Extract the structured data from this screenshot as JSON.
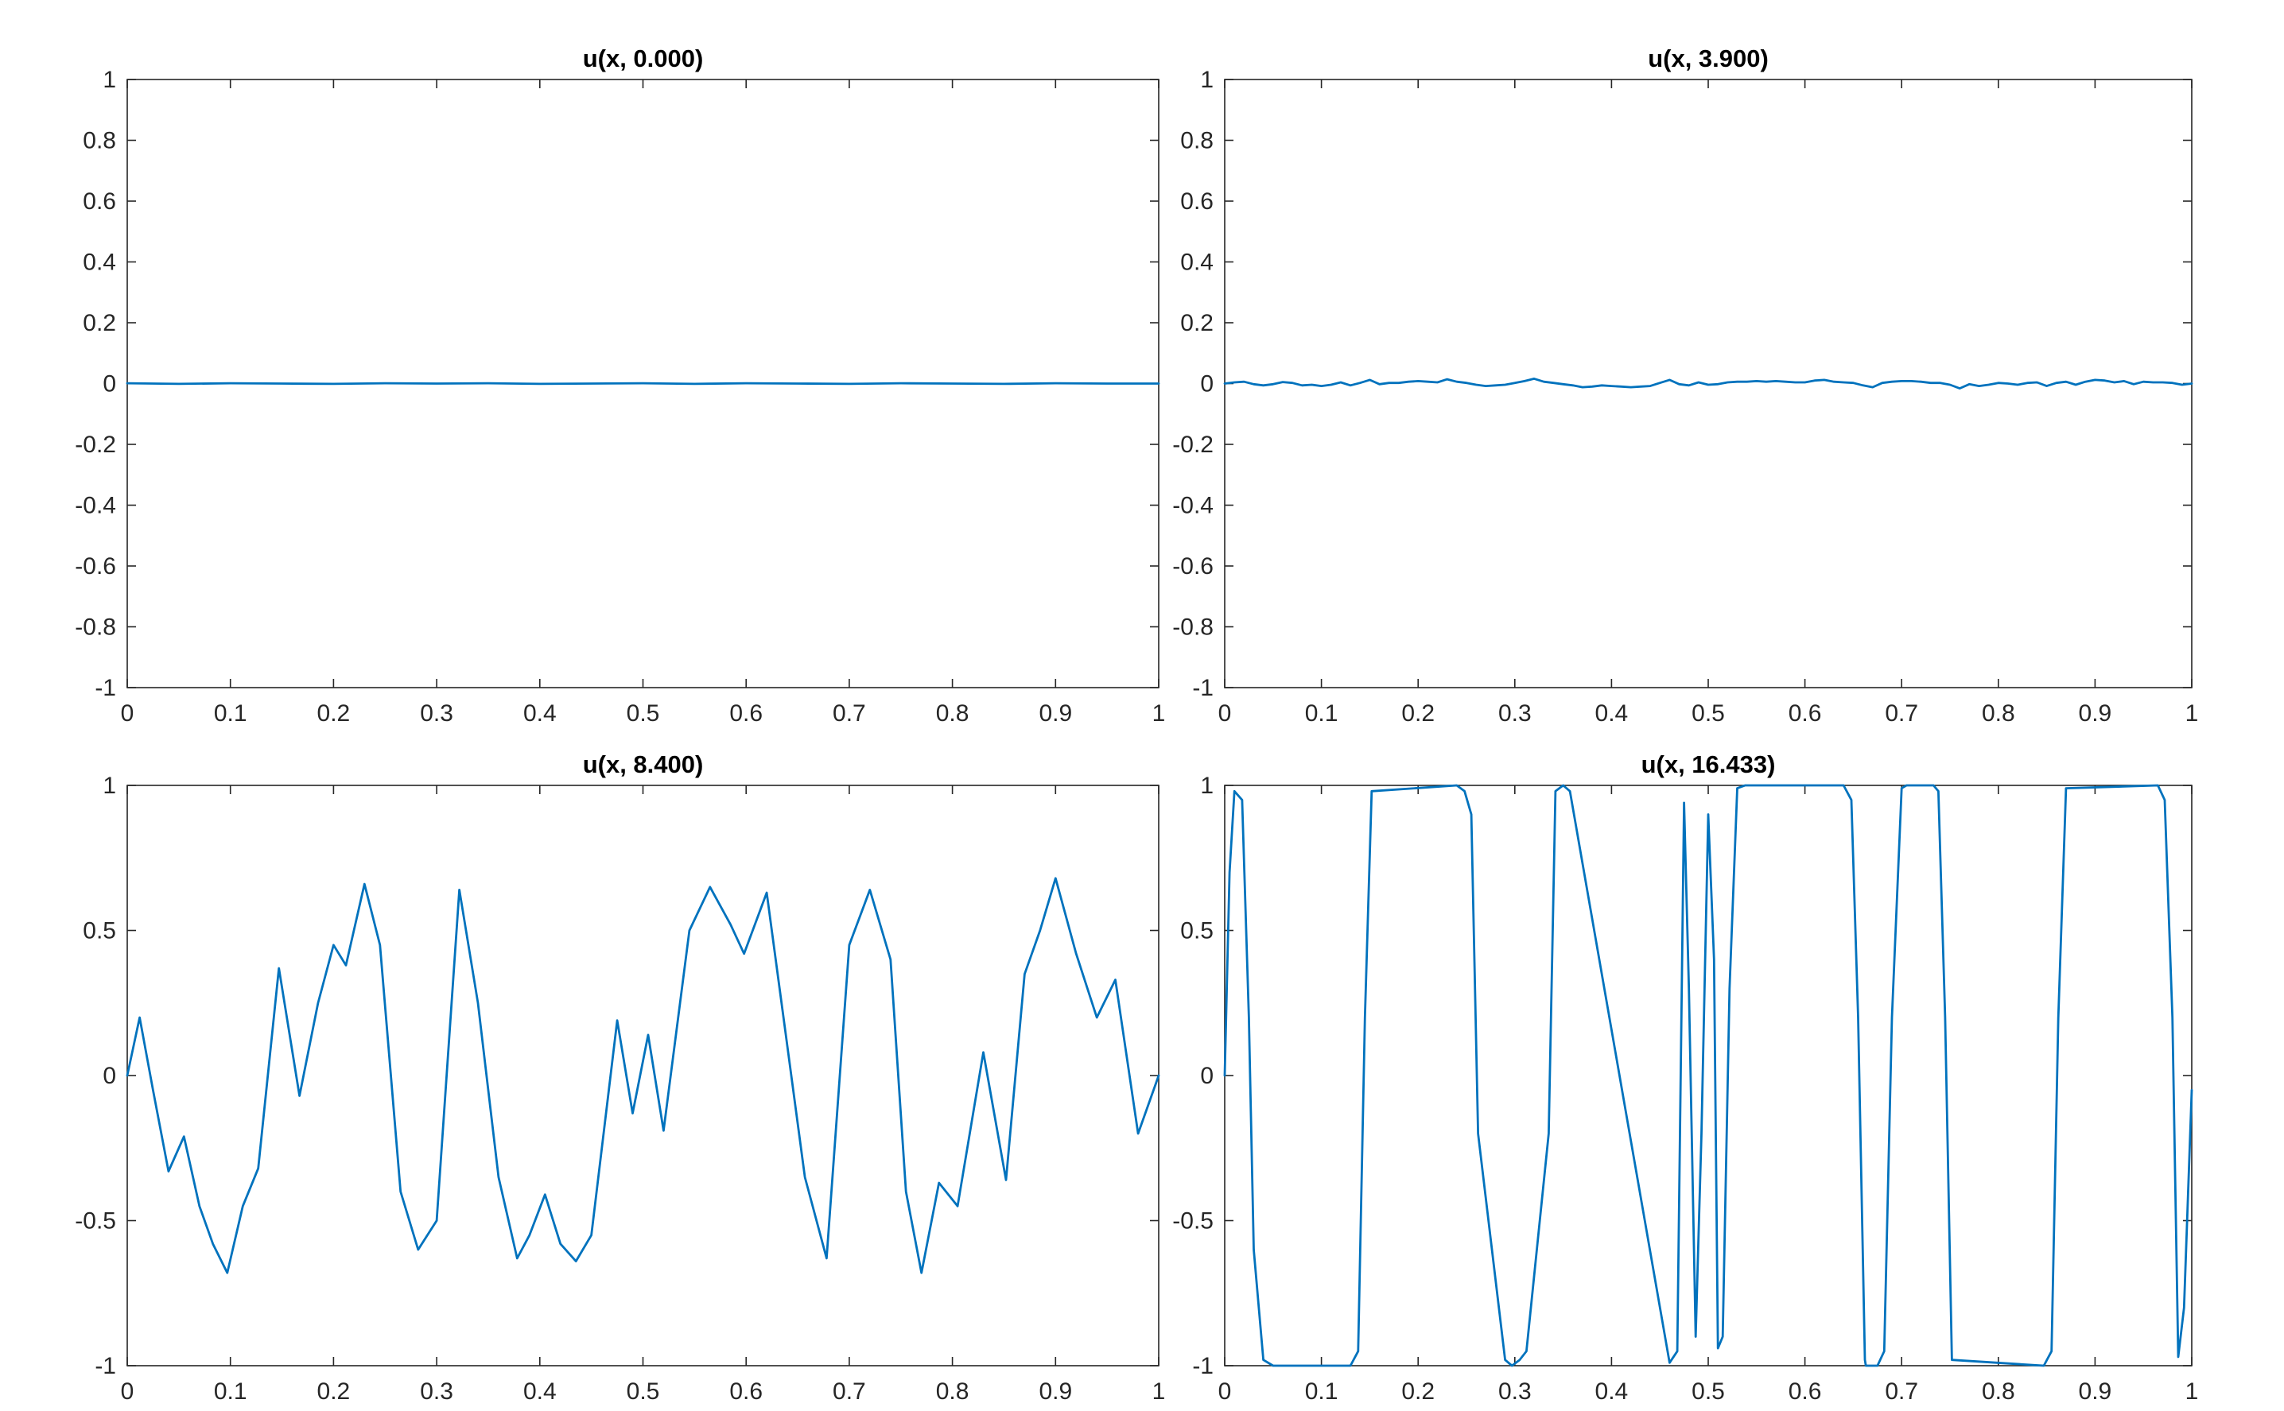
{
  "chart_data": [
    {
      "type": "line",
      "title": "u(x, 0.000)",
      "xlabel": "",
      "ylabel": "",
      "xlim": [
        0,
        1
      ],
      "ylim": [
        -1,
        1
      ],
      "xticks": [
        "0",
        "0.1",
        "0.2",
        "0.3",
        "0.4",
        "0.5",
        "0.6",
        "0.7",
        "0.8",
        "0.9",
        "1"
      ],
      "yticks": [
        "-1",
        "-0.8",
        "-0.6",
        "-0.4",
        "-0.2",
        "0",
        "0.2",
        "0.4",
        "0.6",
        "0.8",
        "1"
      ],
      "grid": false,
      "color": "#0072BD",
      "series": [
        {
          "x": [
            0,
            0.05,
            0.1,
            0.15,
            0.2,
            0.25,
            0.3,
            0.35,
            0.4,
            0.45,
            0.5,
            0.55,
            0.6,
            0.65,
            0.7,
            0.75,
            0.8,
            0.85,
            0.9,
            0.95,
            1
          ],
          "y": [
            0.001,
            -0.001,
            0.001,
            0,
            -0.001,
            0.001,
            0,
            0.001,
            -0.001,
            0,
            0.001,
            -0.001,
            0.001,
            0,
            -0.001,
            0.001,
            0,
            -0.001,
            0.001,
            0,
            0
          ]
        }
      ]
    },
    {
      "type": "line",
      "title": "u(x, 3.900)",
      "xlabel": "",
      "ylabel": "",
      "xlim": [
        0,
        1
      ],
      "ylim": [
        -1,
        1
      ],
      "xticks": [
        "0",
        "0.1",
        "0.2",
        "0.3",
        "0.4",
        "0.5",
        "0.6",
        "0.7",
        "0.8",
        "0.9",
        "1"
      ],
      "yticks": [
        "-1",
        "-0.8",
        "-0.6",
        "-0.4",
        "-0.2",
        "0",
        "0.2",
        "0.4",
        "0.6",
        "0.8",
        "1"
      ],
      "grid": false,
      "color": "#0072BD",
      "series": [
        {
          "x": [
            0,
            0.01,
            0.02,
            0.03,
            0.04,
            0.05,
            0.06,
            0.07,
            0.08,
            0.09,
            0.1,
            0.11,
            0.12,
            0.13,
            0.14,
            0.15,
            0.16,
            0.17,
            0.18,
            0.19,
            0.2,
            0.21,
            0.22,
            0.23,
            0.24,
            0.25,
            0.26,
            0.27,
            0.28,
            0.29,
            0.3,
            0.31,
            0.32,
            0.33,
            0.34,
            0.35,
            0.36,
            0.37,
            0.38,
            0.39,
            0.4,
            0.41,
            0.42,
            0.43,
            0.44,
            0.45,
            0.46,
            0.47,
            0.48,
            0.49,
            0.5,
            0.51,
            0.52,
            0.53,
            0.54,
            0.55,
            0.56,
            0.57,
            0.58,
            0.59,
            0.6,
            0.61,
            0.62,
            0.63,
            0.64,
            0.65,
            0.66,
            0.67,
            0.68,
            0.69,
            0.7,
            0.71,
            0.72,
            0.73,
            0.74,
            0.75,
            0.76,
            0.77,
            0.78,
            0.79,
            0.8,
            0.81,
            0.82,
            0.83,
            0.84,
            0.85,
            0.86,
            0.87,
            0.88,
            0.89,
            0.9,
            0.91,
            0.92,
            0.93,
            0.94,
            0.95,
            0.96,
            0.97,
            0.98,
            0.99,
            1
          ],
          "y": [
            0,
            0.004,
            0.006,
            -0.002,
            -0.006,
            -0.002,
            0.005,
            0.002,
            -0.006,
            -0.004,
            -0.008,
            -0.004,
            0.004,
            -0.006,
            0.002,
            0.012,
            -0.002,
            0.002,
            0.002,
            0.006,
            0.008,
            0.006,
            0.004,
            0.014,
            0.006,
            0.002,
            -0.004,
            -0.008,
            -0.006,
            -0.004,
            0.002,
            0.008,
            0.016,
            0.006,
            0.002,
            -0.002,
            -0.006,
            -0.012,
            -0.01,
            -0.006,
            -0.008,
            -0.01,
            -0.012,
            -0.01,
            -0.008,
            0.002,
            0.012,
            -0.002,
            -0.006,
            0.004,
            -0.004,
            -0.002,
            0.004,
            0.006,
            0.006,
            0.008,
            0.006,
            0.008,
            0.006,
            0.004,
            0.004,
            0.01,
            0.012,
            0.006,
            0.004,
            0.002,
            -0.006,
            -0.012,
            0.002,
            0.006,
            0.008,
            0.008,
            0.006,
            0.002,
            0.002,
            -0.004,
            -0.016,
            -0.002,
            -0.008,
            -0.004,
            0.002,
            0,
            -0.004,
            0.002,
            0.004,
            -0.008,
            0.002,
            0.006,
            -0.004,
            0.006,
            0.012,
            0.01,
            0.004,
            0.008,
            -0.002,
            0.006,
            0.004,
            0.004,
            0.002,
            -0.004,
            0
          ]
        }
      ]
    },
    {
      "type": "line",
      "title": "u(x, 8.400)",
      "xlabel": "",
      "ylabel": "",
      "xlim": [
        0,
        1
      ],
      "ylim": [
        -1,
        1
      ],
      "xticks": [
        "0",
        "0.1",
        "0.2",
        "0.3",
        "0.4",
        "0.5",
        "0.6",
        "0.7",
        "0.8",
        "0.9",
        "1"
      ],
      "yticks": [
        "-1",
        "-0.5",
        "0",
        "0.5",
        "1"
      ],
      "grid": false,
      "color": "#0072BD",
      "series": [
        {
          "x": [
            0,
            0.012,
            0.025,
            0.04,
            0.055,
            0.07,
            0.083,
            0.097,
            0.112,
            0.127,
            0.147,
            0.167,
            0.185,
            0.2,
            0.212,
            0.23,
            0.245,
            0.265,
            0.282,
            0.3,
            0.322,
            0.34,
            0.36,
            0.378,
            0.39,
            0.405,
            0.42,
            0.435,
            0.45,
            0.475,
            0.49,
            0.505,
            0.52,
            0.545,
            0.565,
            0.585,
            0.598,
            0.62,
            0.64,
            0.657,
            0.678,
            0.7,
            0.72,
            0.74,
            0.755,
            0.77,
            0.787,
            0.805,
            0.83,
            0.852,
            0.87,
            0.885,
            0.9,
            0.92,
            0.94,
            0.958,
            0.98,
            1
          ],
          "y": [
            0,
            0.2,
            -0.05,
            -0.33,
            -0.21,
            -0.45,
            -0.58,
            -0.68,
            -0.45,
            -0.32,
            0.37,
            -0.07,
            0.25,
            0.45,
            0.38,
            0.66,
            0.45,
            -0.4,
            -0.6,
            -0.5,
            0.64,
            0.25,
            -0.35,
            -0.63,
            -0.55,
            -0.41,
            -0.58,
            -0.64,
            -0.55,
            0.19,
            -0.13,
            0.14,
            -0.19,
            0.5,
            0.65,
            0.52,
            0.42,
            0.63,
            0.1,
            -0.35,
            -0.63,
            0.45,
            0.64,
            0.4,
            -0.4,
            -0.68,
            -0.37,
            -0.45,
            0.08,
            -0.36,
            0.35,
            0.5,
            0.68,
            0.42,
            0.2,
            0.33,
            -0.2,
            0
          ]
        }
      ]
    },
    {
      "type": "line",
      "title": "u(x, 16.433)",
      "xlabel": "",
      "ylabel": "",
      "xlim": [
        0,
        1
      ],
      "ylim": [
        -1,
        1
      ],
      "xticks": [
        "0",
        "0.1",
        "0.2",
        "0.3",
        "0.4",
        "0.5",
        "0.6",
        "0.7",
        "0.8",
        "0.9",
        "1"
      ],
      "yticks": [
        "-1",
        "-0.5",
        "0",
        "0.5",
        "1"
      ],
      "grid": false,
      "color": "#0072BD",
      "series": [
        {
          "x": [
            0,
            0.005,
            0.01,
            0.018,
            0.025,
            0.03,
            0.04,
            0.05,
            0.13,
            0.138,
            0.145,
            0.152,
            0.24,
            0.248,
            0.255,
            0.262,
            0.29,
            0.297,
            0.305,
            0.312,
            0.335,
            0.342,
            0.35,
            0.357,
            0.46,
            0.468,
            0.475,
            0.48,
            0.487,
            0.493,
            0.5,
            0.506,
            0.51,
            0.515,
            0.522,
            0.53,
            0.538,
            0.64,
            0.648,
            0.655,
            0.662,
            0.663,
            0.667,
            0.675,
            0.682,
            0.69,
            0.7,
            0.705,
            0.733,
            0.738,
            0.745,
            0.752,
            0.847,
            0.855,
            0.862,
            0.87,
            0.965,
            0.972,
            0.98,
            0.986,
            0.992,
            1
          ],
          "y": [
            0,
            0.7,
            0.98,
            0.95,
            0.2,
            -0.6,
            -0.98,
            -1,
            -1,
            -0.95,
            0.2,
            0.98,
            1,
            0.98,
            0.9,
            -0.2,
            -0.98,
            -1,
            -0.98,
            -0.95,
            -0.2,
            0.98,
            1,
            0.98,
            -0.99,
            -0.95,
            0.94,
            0.3,
            -0.9,
            -0.2,
            0.9,
            0.4,
            -0.94,
            -0.9,
            0.3,
            0.99,
            1,
            1,
            0.95,
            0.2,
            -0.98,
            -1,
            -1,
            -1,
            -0.95,
            0.2,
            0.99,
            1,
            1,
            0.98,
            0.2,
            -0.98,
            -1,
            -0.95,
            0.2,
            0.99,
            1,
            0.95,
            0.2,
            -0.97,
            -0.8,
            -0.05
          ]
        }
      ]
    }
  ]
}
